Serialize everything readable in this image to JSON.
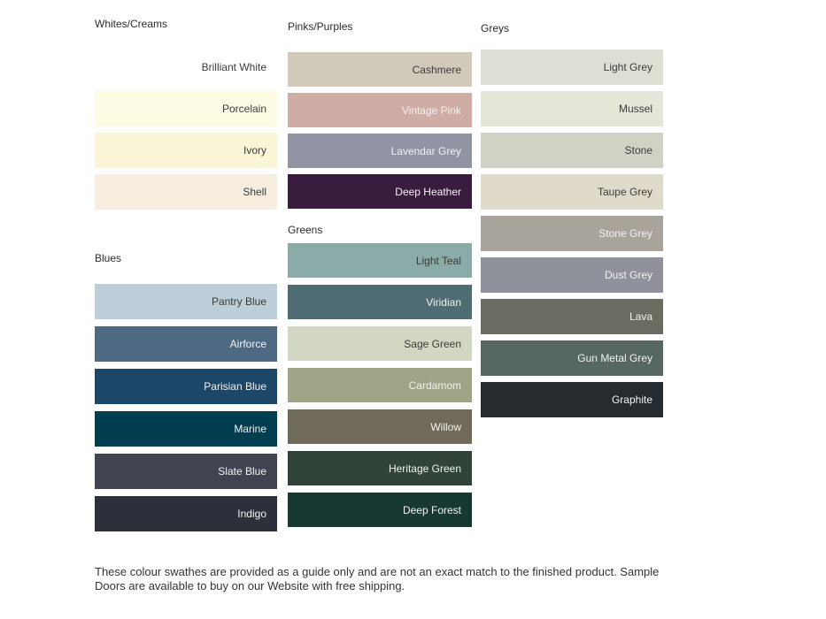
{
  "page": {
    "background": "#ffffff"
  },
  "text_colors": {
    "dark": "#3B3B3B",
    "light": "#F2F2F2"
  },
  "columns": [
    {
      "sections": [
        {
          "title": "Whites/Creams",
          "swatches": [
            {
              "name": "Brilliant White",
              "color": "#FFFFFF",
              "text": "dark"
            },
            {
              "name": "Porcelain",
              "color": "#FEFBE4",
              "text": "dark"
            },
            {
              "name": "Ivory",
              "color": "#FAF5D7",
              "text": "dark"
            },
            {
              "name": "Shell",
              "color": "#F7EEE0",
              "text": "dark"
            }
          ]
        },
        {
          "title": "Blues",
          "swatches": [
            {
              "name": "Pantry Blue",
              "color": "#BCCFD8",
              "text": "dark"
            },
            {
              "name": "Airforce",
              "color": "#4D6A82",
              "text": "light"
            },
            {
              "name": "Parisian Blue",
              "color": "#1D4769",
              "text": "light"
            },
            {
              "name": "Marine",
              "color": "#003E50",
              "text": "light"
            },
            {
              "name": "Slate Blue",
              "color": "#3F4450",
              "text": "light"
            },
            {
              "name": "Indigo",
              "color": "#2B303B",
              "text": "light"
            }
          ]
        }
      ]
    },
    {
      "sections": [
        {
          "title": "Pinks/Purples",
          "swatches": [
            {
              "name": "Cashmere",
              "color": "#D1CABA",
              "text": "dark"
            },
            {
              "name": "Vintage Pink",
              "color": "#CFACA4",
              "text": "light"
            },
            {
              "name": "Lavendar Grey",
              "color": "#9094A3",
              "text": "light"
            },
            {
              "name": "Deep Heather",
              "color": "#3A1C3F",
              "text": "light"
            }
          ]
        },
        {
          "title": "Greens",
          "swatches": [
            {
              "name": "Light Teal",
              "color": "#8AABA8",
              "text": "dark"
            },
            {
              "name": "Viridian",
              "color": "#4E6C71",
              "text": "light"
            },
            {
              "name": "Sage Green",
              "color": "#D2D7C1",
              "text": "dark"
            },
            {
              "name": "Cardamom",
              "color": "#9FA487",
              "text": "light"
            },
            {
              "name": "Willow",
              "color": "#6F6B58",
              "text": "light"
            },
            {
              "name": "Heritage Green",
              "color": "#32443A",
              "text": "light"
            },
            {
              "name": "Deep Forest",
              "color": "#173931",
              "text": "light"
            }
          ]
        }
      ]
    },
    {
      "sections": [
        {
          "title": "Greys",
          "swatches": [
            {
              "name": "Light Grey",
              "color": "#DEDED4",
              "text": "dark"
            },
            {
              "name": "Mussel",
              "color": "#E4E6D8",
              "text": "dark"
            },
            {
              "name": "Stone",
              "color": "#CFD3C3",
              "text": "dark"
            },
            {
              "name": "Taupe Grey",
              "color": "#E0DACB",
              "text": "dark"
            },
            {
              "name": "Stone Grey",
              "color": "#A8A49B",
              "text": "light"
            },
            {
              "name": "Dust Grey",
              "color": "#8F929A",
              "text": "light"
            },
            {
              "name": "Lava",
              "color": "#6C6B62",
              "text": "light"
            },
            {
              "name": "Gun Metal Grey",
              "color": "#576763",
              "text": "light"
            },
            {
              "name": "Graphite",
              "color": "#262B30",
              "text": "light"
            }
          ]
        }
      ]
    }
  ],
  "footer": {
    "line1": "These colour swathes are provided as a guide only and are not an exact match to the finished product.  Sample",
    "line2": "Doors are available to buy on our Website with free shipping."
  }
}
